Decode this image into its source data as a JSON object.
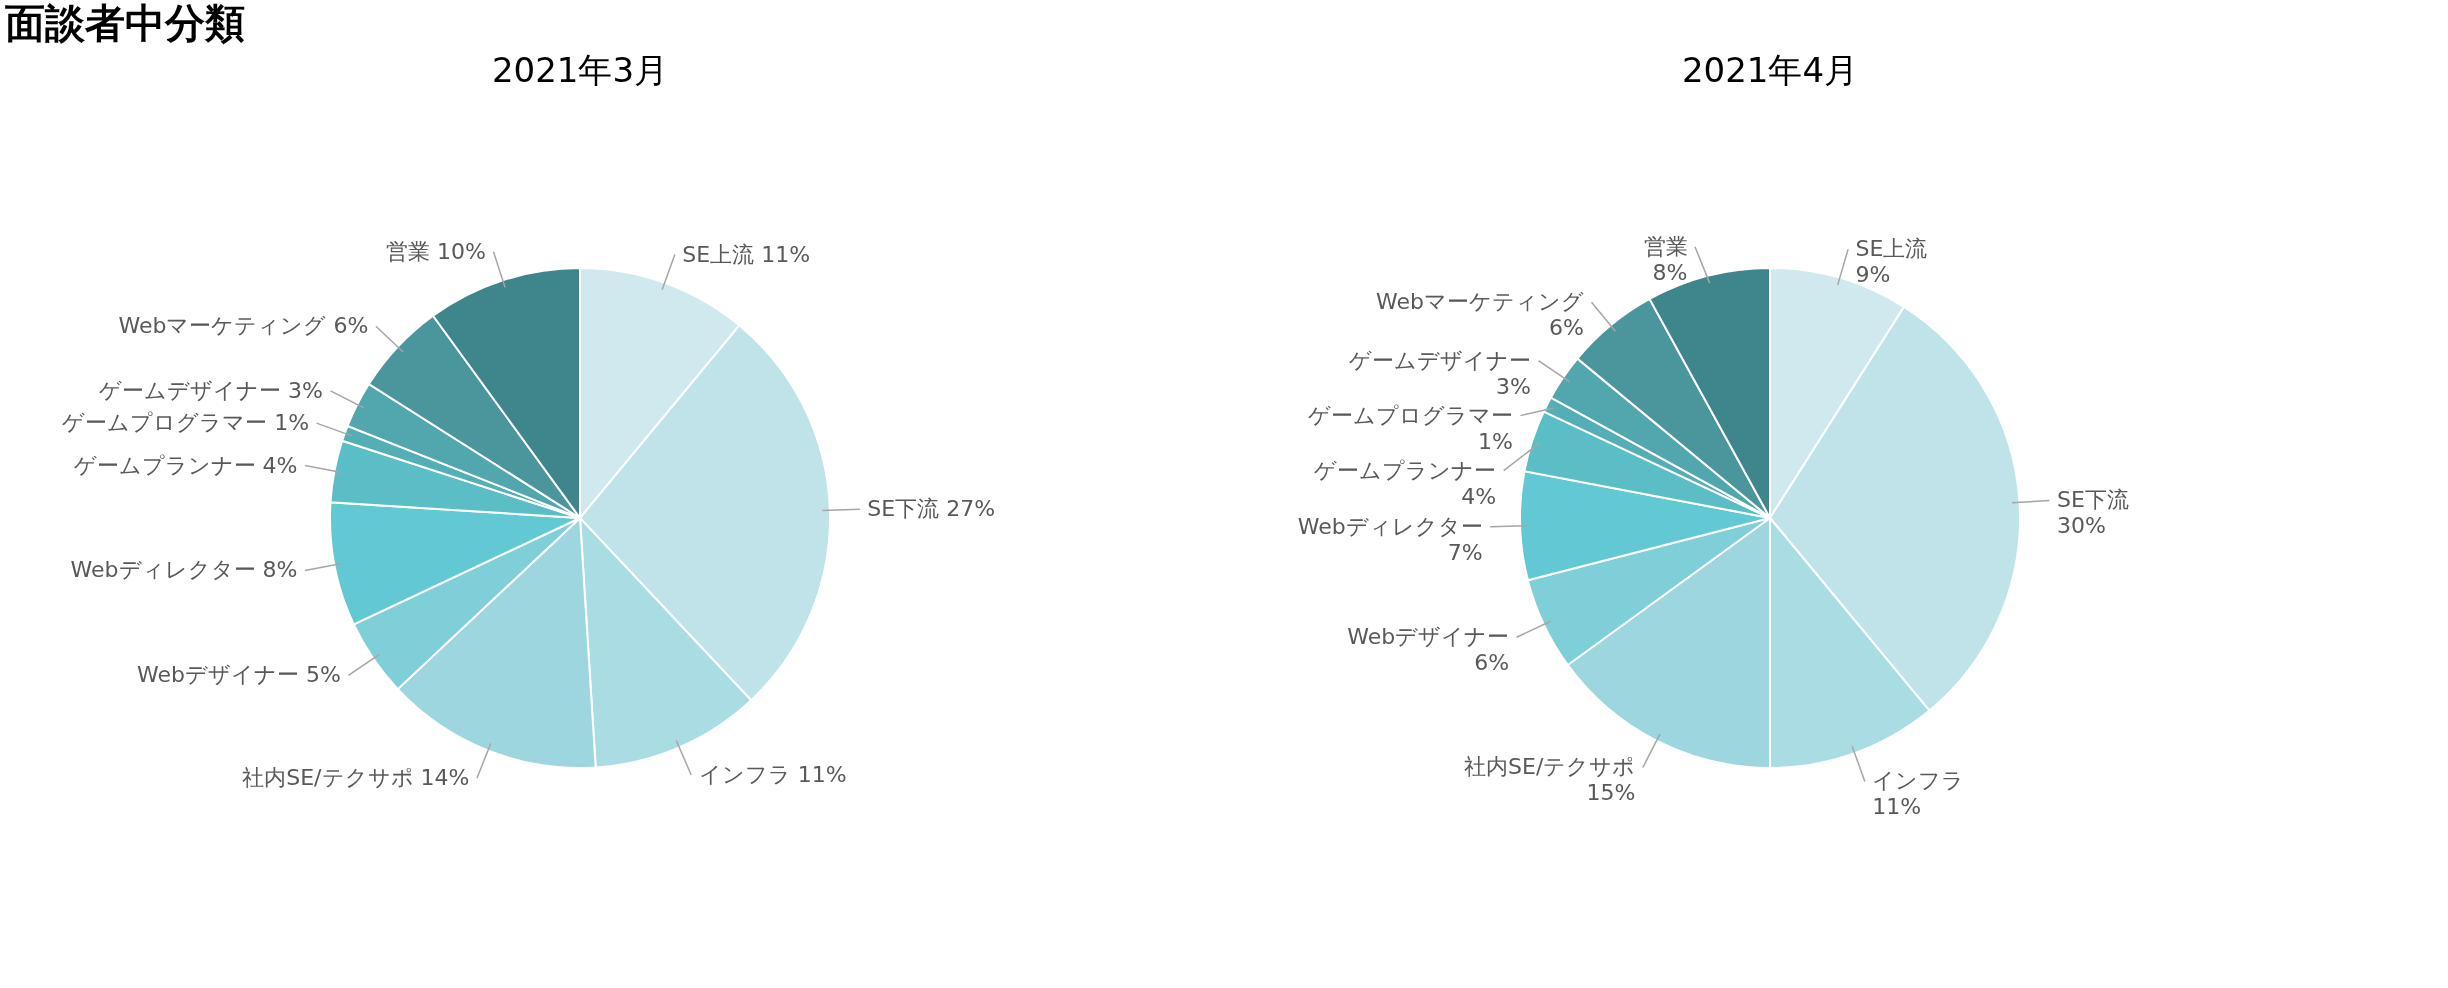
{
  "chart_data": [
    {
      "type": "pie",
      "title": "面談者中分類",
      "subtitle": "2021年3月",
      "categories": [
        "SE上流",
        "SE下流",
        "インフラ",
        "社内SE/テクサポ",
        "Webデザイナー",
        "Webディレクター",
        "ゲームプランナー",
        "ゲームプログラマー",
        "ゲームデザイナー",
        "Webマーケティング",
        "営業"
      ],
      "values": [
        11,
        27,
        11,
        14,
        5,
        8,
        4,
        1,
        3,
        6,
        10
      ],
      "value_labels": [
        "11%",
        "27%",
        "11%",
        "14%",
        "5%",
        "8%",
        "4%",
        "1%",
        "3%",
        "6%",
        "10%"
      ],
      "colors": [
        "#d0e9ee",
        "#c0e3ea",
        "#aadce4",
        "#9dd6df",
        "#7fcfd9",
        "#62c9d4",
        "#5bbec7",
        "#54aeb6",
        "#52a6ad",
        "#4b959c",
        "#3f858c"
      ],
      "legend": false
    },
    {
      "type": "pie",
      "title": "2021年4月",
      "categories": [
        "SE上流",
        "SE下流",
        "インフラ",
        "社内SE/テクサポ",
        "Webデザイナー",
        "Webディレクター",
        "ゲームプランナー",
        "ゲームプログラマー",
        "ゲームデザイナー",
        "Webマーケティング",
        "営業"
      ],
      "values": [
        9,
        30,
        11,
        15,
        6,
        7,
        4,
        1,
        3,
        6,
        8
      ],
      "value_labels": [
        "9%",
        "30%",
        "11%",
        "15%",
        "6%",
        "7%",
        "4%",
        "1%",
        "3%",
        "6%",
        "8%"
      ],
      "colors": [
        "#d0e9ee",
        "#c0e3ea",
        "#aadce4",
        "#9dd6df",
        "#7fcfd9",
        "#62c9d4",
        "#5bbec7",
        "#54aeb6",
        "#52a6ad",
        "#4b959c",
        "#3f858c"
      ],
      "legend": false
    }
  ]
}
